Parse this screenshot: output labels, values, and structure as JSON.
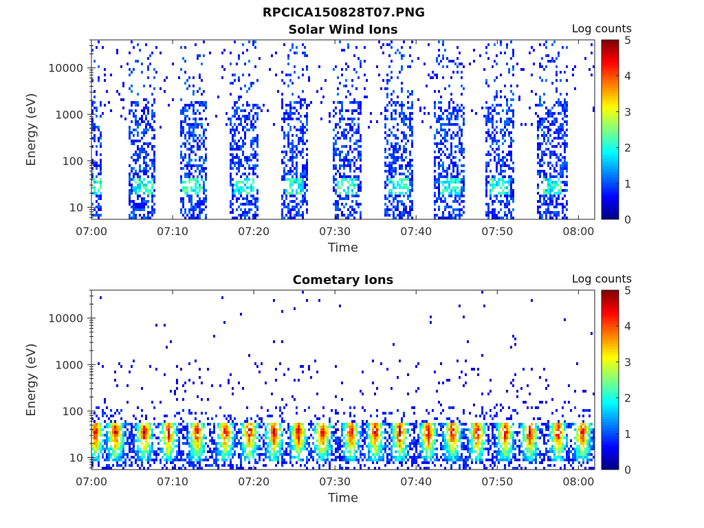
{
  "figure": {
    "title": "RPCICA150828T07.PNG"
  },
  "chart_data": [
    {
      "type": "heatmap",
      "title": "Solar Wind Ions",
      "xlabel": "Time",
      "ylabel": "Energy (eV)",
      "x_range": [
        "07:00",
        "08:02"
      ],
      "x_ticks": [
        "07:00",
        "07:10",
        "07:20",
        "07:30",
        "07:40",
        "07:50",
        "08:00"
      ],
      "y_scale": "log",
      "y_range": [
        5.5,
        40000
      ],
      "y_ticks": [
        "10",
        "100",
        "1000",
        "10000"
      ],
      "colorbar": {
        "label": "Log counts",
        "range": [
          0,
          5
        ],
        "ticks": [
          "0",
          "1",
          "2",
          "3",
          "4",
          "5"
        ]
      },
      "bursts_center_min": [
        0.5,
        6.3,
        12.5,
        18.8,
        25.0,
        31.5,
        37.9,
        44.2,
        50.3,
        56.8
      ],
      "bursts_width_min": [
        1.5,
        3.2,
        3.4,
        3.4,
        3.5,
        3.6,
        3.6,
        3.8,
        3.6,
        3.6
      ],
      "peak_energy_ev": 30,
      "peak_log_counts": 2.3,
      "sparse_energy_range_ev": [
        500,
        30000
      ]
    },
    {
      "type": "heatmap",
      "title": "Cometary Ions",
      "xlabel": "Time",
      "ylabel": "Energy (eV)",
      "x_range": [
        "07:00",
        "08:02"
      ],
      "x_ticks": [
        "07:00",
        "07:10",
        "07:20",
        "07:30",
        "07:40",
        "07:50",
        "08:00"
      ],
      "y_scale": "log",
      "y_range": [
        5.5,
        40000
      ],
      "y_ticks": [
        "10",
        "100",
        "1000",
        "10000"
      ],
      "colorbar": {
        "label": "Log counts",
        "range": [
          0,
          5
        ],
        "ticks": [
          "0",
          "1",
          "2",
          "3",
          "4",
          "5"
        ]
      },
      "band_energy_range_ev": [
        8,
        60
      ],
      "peak_energy_ev": 35,
      "peak_log_counts": 4.0,
      "bursts_center_min": [
        0.5,
        3.0,
        6.5,
        9.5,
        13.0,
        16.5,
        19.5,
        22.5,
        25.5,
        28.5,
        32.0,
        35.0,
        38.0,
        41.5,
        44.5,
        47.5,
        51.0,
        54.0,
        57.5,
        60.5
      ],
      "sparse_energy_range_ev": [
        100,
        25000
      ]
    }
  ]
}
